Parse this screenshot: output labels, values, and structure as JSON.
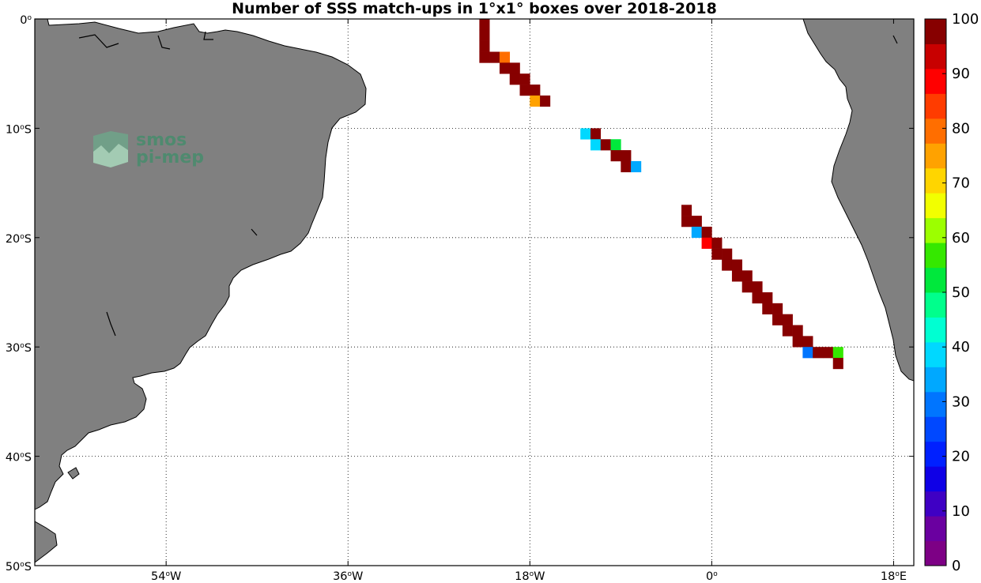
{
  "title": "Number of SSS match-ups in 1°x1° boxes over 2018-2018",
  "logo": {
    "line1": "smos",
    "line2": "pi-mep"
  },
  "map": {
    "lon_range": [
      -67,
      20
    ],
    "lat_range": [
      -50,
      0
    ],
    "grid": true,
    "land_color": "#808080",
    "ocean_color": "#ffffff",
    "lon_ticks": [
      {
        "value": -54,
        "deg": "54",
        "hemi": "W"
      },
      {
        "value": -36,
        "deg": "36",
        "hemi": "W"
      },
      {
        "value": -18,
        "deg": "18",
        "hemi": "W"
      },
      {
        "value": 0,
        "deg": "0",
        "hemi": ""
      },
      {
        "value": 18,
        "deg": "18",
        "hemi": "E"
      }
    ],
    "lat_ticks": [
      {
        "value": 0,
        "deg": "0",
        "hemi": ""
      },
      {
        "value": -10,
        "deg": "10",
        "hemi": "S"
      },
      {
        "value": -20,
        "deg": "20",
        "hemi": "S"
      },
      {
        "value": -30,
        "deg": "30",
        "hemi": "S"
      },
      {
        "value": -40,
        "deg": "40",
        "hemi": "S"
      },
      {
        "value": -50,
        "deg": "50",
        "hemi": "S"
      }
    ]
  },
  "colorbar": {
    "min": 0,
    "max": 100,
    "tick_labels": [
      "0",
      "10",
      "20",
      "30",
      "40",
      "50",
      "60",
      "70",
      "80",
      "90",
      "100"
    ],
    "colors": [
      "#7d0085",
      "#6a00a0",
      "#3f00c4",
      "#0f00e6",
      "#0020ff",
      "#0048ff",
      "#0075ff",
      "#00a8ff",
      "#00d8ff",
      "#00ffd2",
      "#00ff8c",
      "#00e83c",
      "#35e800",
      "#9cff00",
      "#f2ff00",
      "#ffd500",
      "#ffa200",
      "#ff6e00",
      "#ff3c00",
      "#ff0000",
      "#c80000",
      "#870000"
    ]
  },
  "chart_data": {
    "type": "heatmap",
    "title": "Number of SSS match-ups in 1°x1° boxes over 2018-2018",
    "value_range": [
      0,
      100
    ],
    "cell_size_deg": 1,
    "cells": [
      {
        "lon": -23,
        "lat": -1,
        "value": 100
      },
      {
        "lon": -23,
        "lat": -2,
        "value": 100
      },
      {
        "lon": -23,
        "lat": -3,
        "value": 100
      },
      {
        "lon": -23,
        "lat": -4,
        "value": 100
      },
      {
        "lon": -22,
        "lat": -4,
        "value": 100
      },
      {
        "lon": -21,
        "lat": -4,
        "value": 80
      },
      {
        "lon": -21,
        "lat": -5,
        "value": 100
      },
      {
        "lon": -20,
        "lat": -5,
        "value": 100
      },
      {
        "lon": -20,
        "lat": -6,
        "value": 100
      },
      {
        "lon": -19,
        "lat": -6,
        "value": 100
      },
      {
        "lon": -19,
        "lat": -7,
        "value": 100
      },
      {
        "lon": -18,
        "lat": -7,
        "value": 100
      },
      {
        "lon": -18,
        "lat": -8,
        "value": 75
      },
      {
        "lon": -17,
        "lat": -8,
        "value": 100
      },
      {
        "lon": -13,
        "lat": -11,
        "value": 38
      },
      {
        "lon": -12,
        "lat": -11,
        "value": 100
      },
      {
        "lon": -12,
        "lat": -12,
        "value": 38
      },
      {
        "lon": -11,
        "lat": -12,
        "value": 100
      },
      {
        "lon": -10,
        "lat": -12,
        "value": 52
      },
      {
        "lon": -10,
        "lat": -13,
        "value": 100
      },
      {
        "lon": -9,
        "lat": -13,
        "value": 100
      },
      {
        "lon": -9,
        "lat": -14,
        "value": 100
      },
      {
        "lon": -8,
        "lat": -14,
        "value": 33
      },
      {
        "lon": -3,
        "lat": -18,
        "value": 100
      },
      {
        "lon": -3,
        "lat": -19,
        "value": 100
      },
      {
        "lon": -2,
        "lat": -19,
        "value": 100
      },
      {
        "lon": -2,
        "lat": -20,
        "value": 33
      },
      {
        "lon": -1,
        "lat": -20,
        "value": 100
      },
      {
        "lon": -1,
        "lat": -21,
        "value": 90
      },
      {
        "lon": 0,
        "lat": -21,
        "value": 100
      },
      {
        "lon": 0,
        "lat": -22,
        "value": 100
      },
      {
        "lon": 1,
        "lat": -22,
        "value": 100
      },
      {
        "lon": 1,
        "lat": -23,
        "value": 100
      },
      {
        "lon": 2,
        "lat": -23,
        "value": 100
      },
      {
        "lon": 2,
        "lat": -24,
        "value": 100
      },
      {
        "lon": 3,
        "lat": -24,
        "value": 100
      },
      {
        "lon": 3,
        "lat": -25,
        "value": 100
      },
      {
        "lon": 4,
        "lat": -25,
        "value": 100
      },
      {
        "lon": 4,
        "lat": -26,
        "value": 100
      },
      {
        "lon": 5,
        "lat": -26,
        "value": 100
      },
      {
        "lon": 5,
        "lat": -27,
        "value": 100
      },
      {
        "lon": 6,
        "lat": -27,
        "value": 100
      },
      {
        "lon": 6,
        "lat": -28,
        "value": 100
      },
      {
        "lon": 7,
        "lat": -28,
        "value": 100
      },
      {
        "lon": 7,
        "lat": -29,
        "value": 100
      },
      {
        "lon": 8,
        "lat": -29,
        "value": 100
      },
      {
        "lon": 8,
        "lat": -30,
        "value": 100
      },
      {
        "lon": 9,
        "lat": -30,
        "value": 100
      },
      {
        "lon": 9,
        "lat": -31,
        "value": 28
      },
      {
        "lon": 10,
        "lat": -31,
        "value": 100
      },
      {
        "lon": 11,
        "lat": -31,
        "value": 100
      },
      {
        "lon": 12,
        "lat": -31,
        "value": 57
      },
      {
        "lon": 12,
        "lat": -32,
        "value": 100
      }
    ]
  }
}
